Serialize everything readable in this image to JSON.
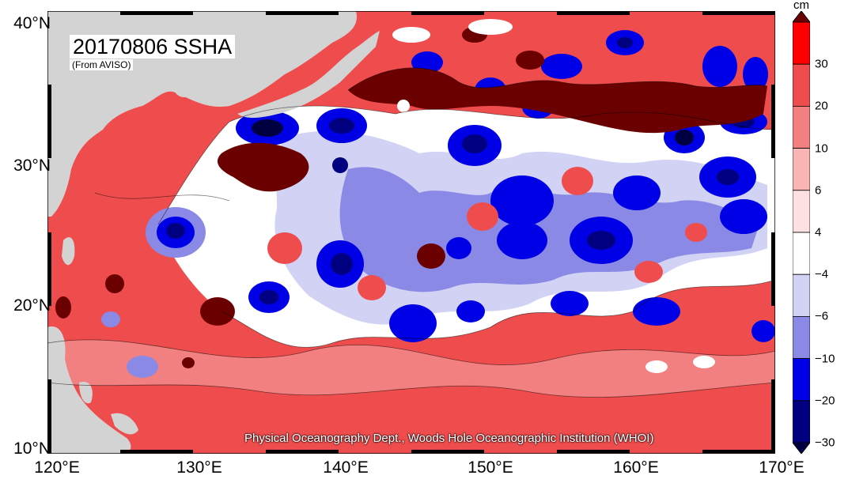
{
  "title": "20170806 SSHA",
  "subtitle": "(From AVISO)",
  "credit": "Physical Oceanography Dept., Woods Hole Oceanographic Institution (WHOI)",
  "map": {
    "lon_range": [
      120,
      170
    ],
    "lat_range": [
      10,
      40
    ],
    "lat_labels": [
      "40°N",
      "30°N",
      "20°N",
      "10°N"
    ],
    "lon_labels": [
      "120°E",
      "130°E",
      "140°E",
      "150°E",
      "160°E",
      "170°E"
    ],
    "land_color": "#d3d3d3",
    "background_color": "#ef4d4d"
  },
  "colorbar": {
    "unit": "cm",
    "tick_labels": [
      "30",
      "20",
      "10",
      "6",
      "4",
      "−4",
      "−6",
      "−10",
      "−20",
      "−30"
    ],
    "colors_top_to_bottom": [
      "#6b0000",
      "#ff0000",
      "#ef4d4d",
      "#f28080",
      "#fab4b4",
      "#fde0e0",
      "#ffffff",
      "#d2d2f5",
      "#8a8ae6",
      "#0000e6",
      "#000080",
      "#000040"
    ]
  }
}
